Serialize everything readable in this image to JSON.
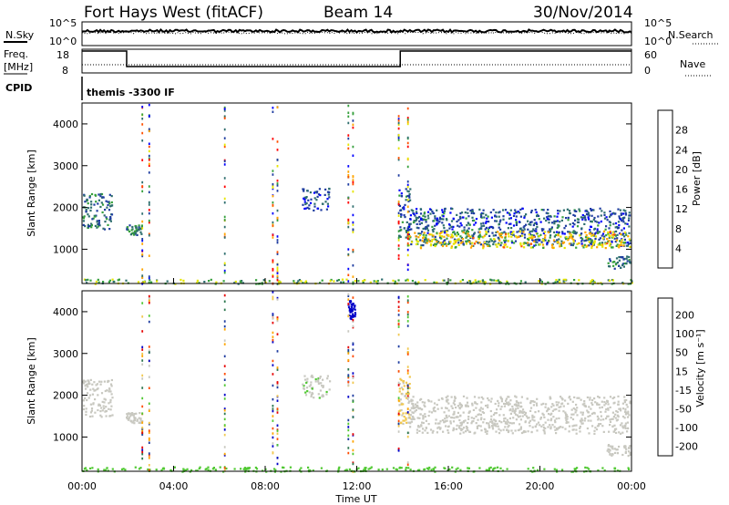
{
  "header": {
    "site": "Fort Hays West (fitACF)",
    "beam": "Beam 14",
    "date": "30/Nov/2014"
  },
  "noise_panel": {
    "left_label": "N.Sky",
    "left_ticks": [
      "10^5",
      "10^0"
    ],
    "right_label": "N.Search",
    "right_ticks": [
      "10^5",
      "10^0"
    ]
  },
  "freq_panel": {
    "left_label_1": "Freq.",
    "left_label_2": "[MHz]",
    "left_ticks": [
      "18",
      "8"
    ],
    "right_label": "Nave",
    "right_ticks": [
      "60",
      "0"
    ]
  },
  "cpid": {
    "label": "CPID",
    "program": "themis -3300 IF"
  },
  "chart_data": [
    {
      "type": "heatmap",
      "name": "power",
      "ylabel": "Slant Range [km]",
      "yticks": [
        1000,
        2000,
        3000,
        4000
      ],
      "ylim": [
        180,
        4500
      ],
      "xlabel": "Time UT",
      "xticks": [
        "00:00",
        "04:00",
        "08:00",
        "12:00",
        "16:00",
        "20:00",
        "00:00"
      ],
      "xlim_hours": [
        0,
        24
      ],
      "colorbar": {
        "label": "Power [dB]",
        "ticks": [
          "4",
          "8",
          "12",
          "16",
          "20",
          "24",
          "28"
        ],
        "range": [
          0,
          30
        ]
      },
      "scatter_regions": [
        {
          "t": [
            0.0,
            1.3
          ],
          "r": [
            1500,
            2400
          ],
          "value": 9
        },
        {
          "t": [
            1.9,
            2.6
          ],
          "r": [
            1350,
            1600
          ],
          "value": 10
        },
        {
          "t": [
            9.6,
            10.8
          ],
          "r": [
            1950,
            2500
          ],
          "value": 6
        },
        {
          "t": [
            13.8,
            14.3
          ],
          "r": [
            1300,
            2500
          ],
          "value": 8
        },
        {
          "t": [
            14.2,
            23.9
          ],
          "r": [
            1100,
            2000
          ],
          "value": 7
        },
        {
          "t": [
            14.2,
            23.9
          ],
          "r": [
            1050,
            1450
          ],
          "value": 18
        },
        {
          "t": [
            22.9,
            23.9
          ],
          "r": [
            550,
            850
          ],
          "value": 9
        },
        {
          "t": [
            0.0,
            24.0
          ],
          "r": [
            190,
            300
          ],
          "value": 14
        }
      ]
    },
    {
      "type": "heatmap",
      "name": "velocity",
      "ylabel": "Slant Range [km]",
      "yticks": [
        1000,
        2000,
        3000,
        4000
      ],
      "ylim": [
        180,
        4500
      ],
      "xlabel": "Time UT",
      "xticks": [
        "00:00",
        "04:00",
        "08:00",
        "12:00",
        "16:00",
        "20:00",
        "00:00"
      ],
      "xlim_hours": [
        0,
        24
      ],
      "colorbar": {
        "label": "Velocity [m s⁻¹]",
        "ticks": [
          "200",
          "100",
          "50",
          "15",
          "-15",
          "-50",
          "-100",
          "-200"
        ],
        "range": [
          -250,
          250
        ]
      },
      "scatter_regions": [
        {
          "t": [
            0.0,
            1.3
          ],
          "r": [
            1500,
            2400
          ],
          "value": 0
        },
        {
          "t": [
            1.9,
            2.6
          ],
          "r": [
            1350,
            1600
          ],
          "value": 0
        },
        {
          "t": [
            9.6,
            10.8
          ],
          "r": [
            1950,
            2500
          ],
          "value": -20
        },
        {
          "t": [
            13.8,
            14.3
          ],
          "r": [
            1300,
            2500
          ],
          "value": 30
        },
        {
          "t": [
            14.2,
            23.9
          ],
          "r": [
            1100,
            2000
          ],
          "value": 0
        },
        {
          "t": [
            22.9,
            23.9
          ],
          "r": [
            550,
            850
          ],
          "value": 0
        },
        {
          "t": [
            11.6,
            11.9
          ],
          "r": [
            3800,
            4300
          ],
          "value": -220
        },
        {
          "t": [
            0.0,
            24.0
          ],
          "r": [
            190,
            300
          ],
          "value": -60
        }
      ]
    }
  ],
  "colors": {
    "power_scale": [
      "#0000ff",
      "#1e3ca0",
      "#2e6e6e",
      "#36a03c",
      "#e6e600",
      "#ffa500",
      "#ff5000",
      "#ff0000"
    ],
    "velocity_scale": [
      "#e60000",
      "#ff4b00",
      "#ffa500",
      "#f0c850",
      "#c8c8c0",
      "#50c832",
      "#2e7850",
      "#1e3ca0",
      "#0000c8"
    ]
  }
}
